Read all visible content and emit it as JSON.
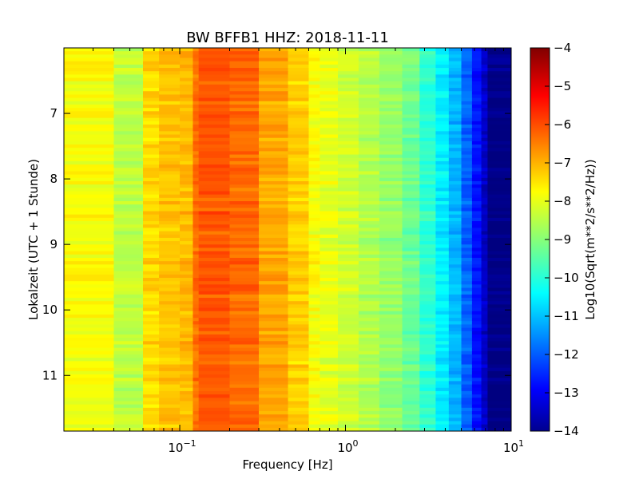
{
  "chart_data": {
    "type": "heatmap",
    "title": "BW BFFB1 HHZ: 2018-11-11",
    "xlabel": "Frequency [Hz]",
    "ylabel": "Lokalzeit (UTC + 1 Stunde)",
    "x_scale": "log",
    "xlim": [
      0.02,
      10
    ],
    "ylim": [
      11.85,
      6.0
    ],
    "x_ticks": [
      {
        "value": 0.1,
        "label": "10",
        "exp": "−1"
      },
      {
        "value": 1,
        "label": "10",
        "exp": "0"
      },
      {
        "value": 10,
        "label": "10",
        "exp": "1"
      }
    ],
    "y_ticks": [
      {
        "value": 7,
        "label": "7"
      },
      {
        "value": 8,
        "label": "8"
      },
      {
        "value": 9,
        "label": "9"
      },
      {
        "value": 10,
        "label": "10"
      },
      {
        "value": 11,
        "label": "11"
      }
    ],
    "colorbar": {
      "label": "Log10(Sqrt(m**2/s**2/Hz))",
      "range": [
        -14,
        -4
      ],
      "ticks": [
        {
          "value": -4,
          "label": "−4"
        },
        {
          "value": -5,
          "label": "−5"
        },
        {
          "value": -6,
          "label": "−6"
        },
        {
          "value": -7,
          "label": "−7"
        },
        {
          "value": -8,
          "label": "−8"
        },
        {
          "value": -9,
          "label": "−9"
        },
        {
          "value": -10,
          "label": "−10"
        },
        {
          "value": -11,
          "label": "−11"
        },
        {
          "value": -12,
          "label": "−12"
        },
        {
          "value": -13,
          "label": "−13"
        },
        {
          "value": -14,
          "label": "−14"
        }
      ]
    },
    "frequency_bands_hz": [
      0.02,
      0.04,
      0.06,
      0.075,
      0.1,
      0.12,
      0.13,
      0.2,
      0.3,
      0.45,
      0.6,
      0.7,
      0.9,
      1.2,
      1.6,
      2.2,
      2.8,
      3.5,
      4.2,
      5.0,
      5.8,
      6.6,
      7.2,
      10
    ],
    "band_level_log10": [
      -7.8,
      -8.4,
      -7.4,
      -7.2,
      -7.1,
      -6.4,
      -6.1,
      -6.3,
      -6.9,
      -7.3,
      -7.8,
      -8.0,
      -8.2,
      -8.5,
      -8.8,
      -9.2,
      -9.8,
      -10.4,
      -11.0,
      -11.8,
      -12.6,
      -13.3,
      -14.0
    ],
    "time_rows": 115,
    "time_start": 6.0,
    "time_end": 11.85
  }
}
